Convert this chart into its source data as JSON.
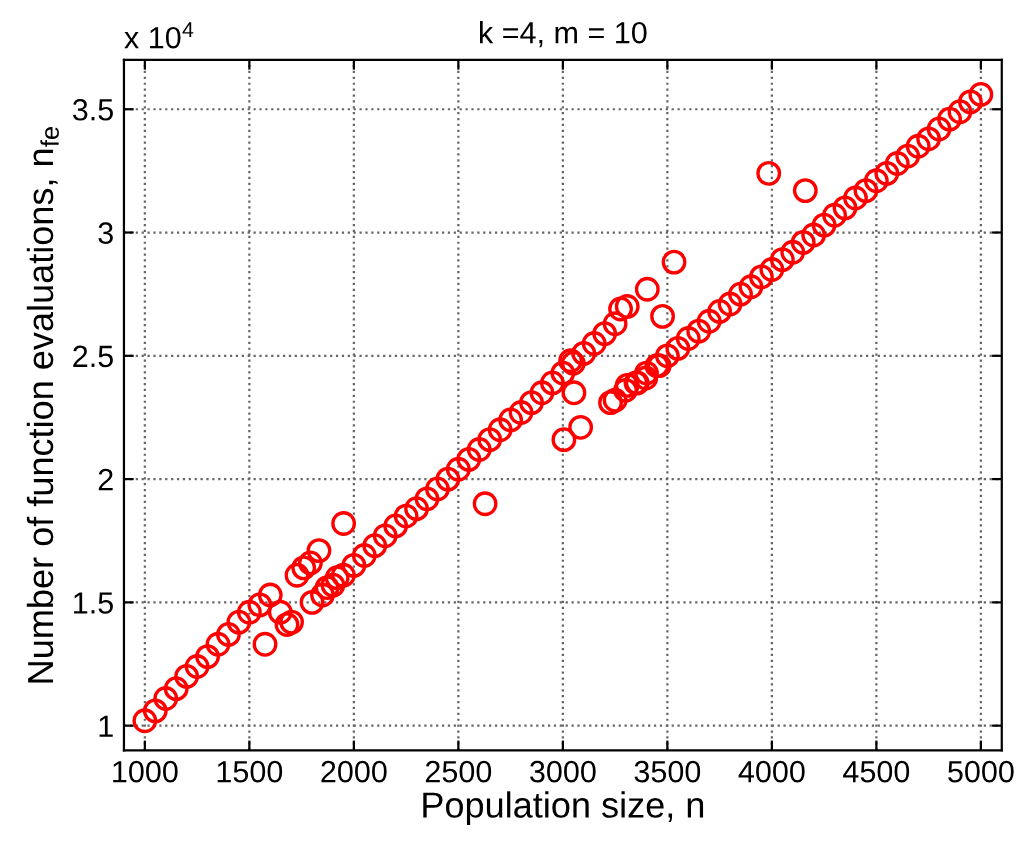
{
  "chart_data": {
    "type": "scatter",
    "title": "k =4, m = 10",
    "xlabel": "Population size, n",
    "ylabel": "Number of function evaluations, n$_{fe}$",
    "annotations": [
      "x 10$^{4}$"
    ],
    "series": [
      {
        "color": "#ff0000",
        "x": [
          1000,
          1050,
          1100,
          1150,
          1200,
          1250,
          1300,
          1350,
          1400,
          1450,
          1500,
          1550,
          1600,
          1800,
          1850,
          1900,
          1950,
          2000,
          2050,
          2100,
          2150,
          2200,
          2250,
          2300,
          2350,
          2400,
          2450,
          2500,
          2550,
          2600,
          2650,
          2700,
          2750,
          2800,
          2850,
          2900,
          2950,
          3000,
          3050,
          3100,
          3150,
          3200,
          3250,
          3250,
          3300,
          3350,
          3400,
          3450,
          3500,
          3550,
          3600,
          3650,
          3700,
          3750,
          3800,
          3850,
          3900,
          3950,
          4000,
          4050,
          4100,
          4150,
          4200,
          4250,
          4300,
          4350,
          4400,
          4450,
          4500,
          4550,
          4600,
          4650,
          4700,
          4750,
          4800,
          4850,
          4900,
          4950,
          5000,
          1575,
          1680,
          1702,
          1648,
          1728,
          1760,
          1792,
          1833,
          1872,
          1920,
          1951,
          2628,
          3005,
          3085,
          3053,
          3037,
          3228,
          3308,
          3356,
          3397,
          3461,
          3477,
          3404,
          3532,
          3276,
          3308,
          3985,
          4160
        ],
        "values": [
          1.02,
          1.06,
          1.11,
          1.15,
          1.2,
          1.24,
          1.28,
          1.33,
          1.37,
          1.42,
          1.46,
          1.49,
          1.53,
          1.5,
          1.53,
          1.57,
          1.61,
          1.65,
          1.69,
          1.73,
          1.77,
          1.81,
          1.85,
          1.88,
          1.92,
          1.96,
          2.0,
          2.04,
          2.08,
          2.12,
          2.16,
          2.2,
          2.24,
          2.27,
          2.31,
          2.35,
          2.39,
          2.43,
          2.47,
          2.51,
          2.55,
          2.59,
          2.63,
          2.32,
          2.36,
          2.39,
          2.43,
          2.46,
          2.5,
          2.53,
          2.57,
          2.6,
          2.64,
          2.68,
          2.71,
          2.75,
          2.78,
          2.82,
          2.85,
          2.89,
          2.92,
          2.96,
          2.99,
          3.03,
          3.07,
          3.1,
          3.14,
          3.17,
          3.21,
          3.24,
          3.28,
          3.31,
          3.35,
          3.38,
          3.42,
          3.46,
          3.49,
          3.53,
          3.56,
          1.33,
          1.41,
          1.42,
          1.46,
          1.61,
          1.64,
          1.66,
          1.71,
          1.56,
          1.6,
          1.82,
          1.9,
          2.16,
          2.21,
          2.35,
          2.48,
          2.31,
          2.38,
          2.39,
          2.41,
          2.46,
          2.66,
          2.77,
          2.88,
          2.69,
          2.7,
          3.24,
          3.17
        ]
      }
    ],
    "marker": "circle",
    "grid": true,
    "xlim": [
      900,
      5100
    ],
    "xticks": [
      1000,
      1500,
      2000,
      2500,
      3000,
      3500,
      4000,
      4500,
      5000
    ],
    "ylim": [
      0.9,
      3.7
    ],
    "yticks": [
      1,
      1.5,
      2,
      2.5,
      3,
      3.5
    ]
  }
}
